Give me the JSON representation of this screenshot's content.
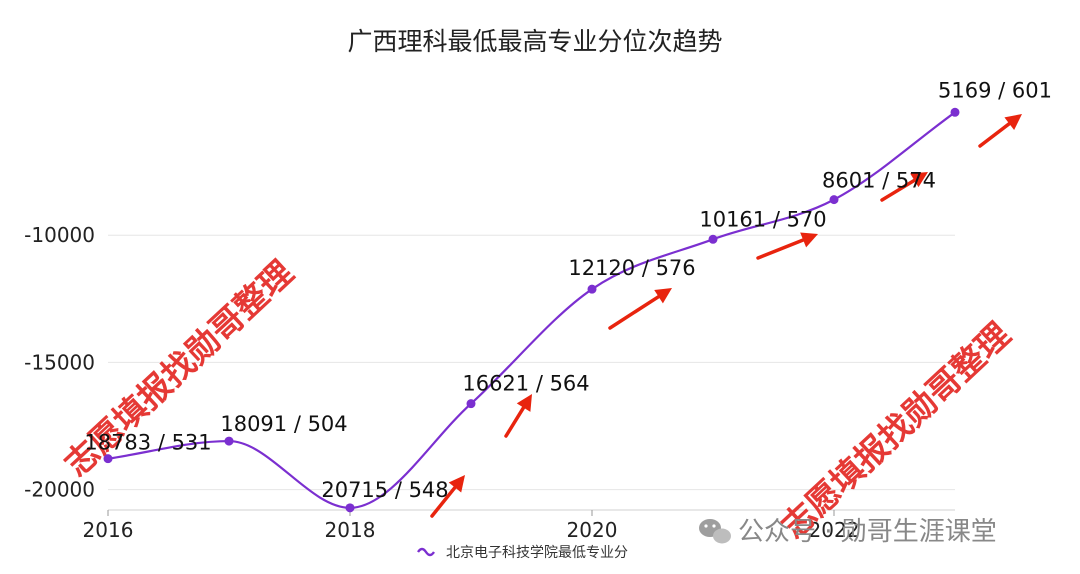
{
  "chart_data": {
    "type": "line",
    "title": "广西理科最低最高专业分位次趋势",
    "xlabel": "",
    "ylabel": "",
    "x": [
      2016,
      2017,
      2018,
      2019,
      2020,
      2021,
      2022,
      2023
    ],
    "x_tick_labels": [
      "2016",
      "2018",
      "2020",
      "2022"
    ],
    "y_ticks": [
      -10000,
      -15000,
      -20000
    ],
    "y_tick_labels": [
      "-10000",
      "-15000",
      "-20000"
    ],
    "ylim": [
      -20800,
      -5000
    ],
    "grid": true,
    "legend": "bottom",
    "series": [
      {
        "name": "北京电子科技学院最低专业分",
        "color": "#7b2fd0",
        "values": [
          -18783,
          -18091,
          -20715,
          -16621,
          -12120,
          -10161,
          -8601,
          -5169
        ],
        "labels": [
          "18783 / 531",
          "18091 / 504",
          "20715 / 548",
          "16621 / 564",
          "12120 / 576",
          "10161 / 570",
          "8601 / 574",
          "5169 / 601"
        ]
      }
    ]
  },
  "watermark": {
    "left_text": "志愿填报找勋哥整理",
    "right_text": "志愿填报找勋哥整理",
    "color": "#e53935"
  },
  "footer": {
    "text": "公众号 · 勋哥生涯课堂",
    "icon": "wechat-icon"
  },
  "arrow_color": "#e8240e"
}
